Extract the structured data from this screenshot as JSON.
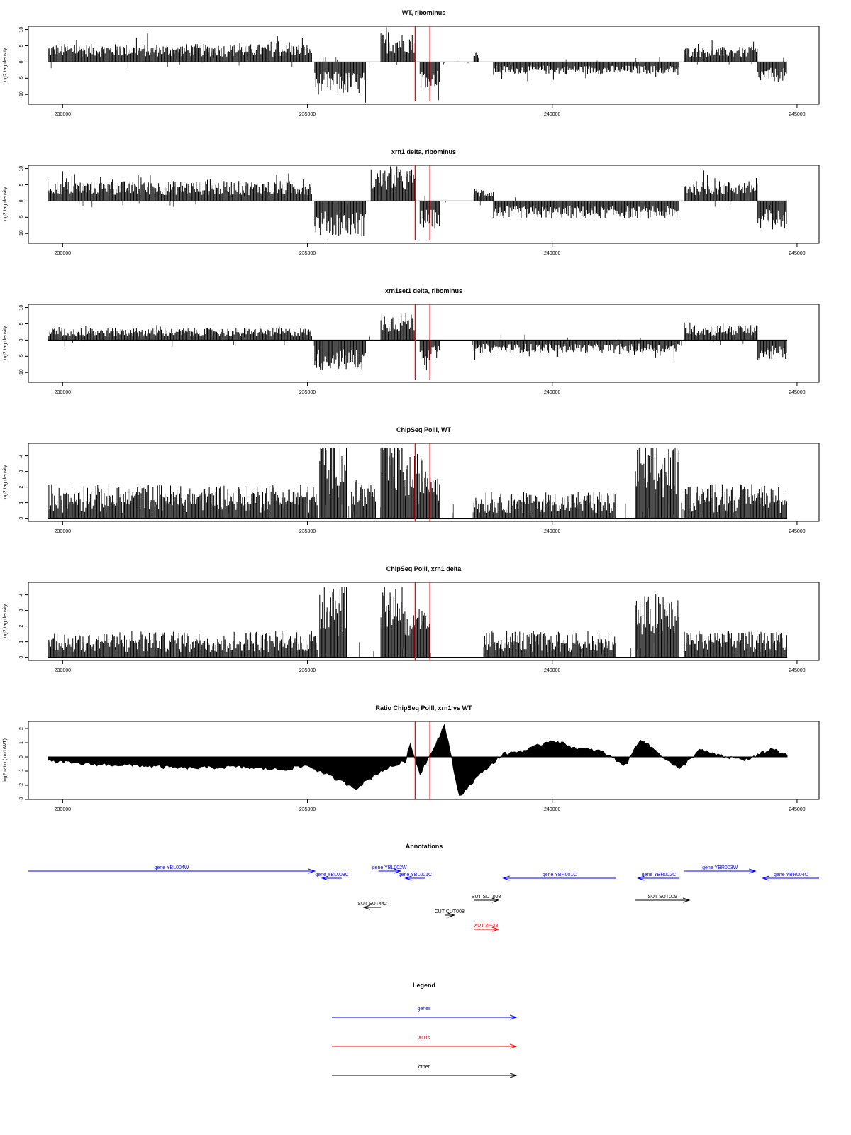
{
  "chart_data": [
    {
      "type": "bar",
      "title": "WT, ribominus",
      "xlabel": "",
      "ylabel": "log2 tag density",
      "xlim": [
        229300,
        245450
      ],
      "ylim": [
        -13,
        11
      ],
      "yticks": [
        "-10",
        "-5",
        "0",
        "5",
        "10"
      ],
      "xticks": [
        "230000",
        "235000",
        "240000",
        "245000"
      ],
      "regions": [
        {
          "start": 229700,
          "end": 235100,
          "mean": 3.6,
          "sign": 1
        },
        {
          "start": 235150,
          "end": 236200,
          "mean": -6.5,
          "sign": -1
        },
        {
          "start": 236500,
          "end": 237200,
          "mean": 5.8,
          "sign": 1
        },
        {
          "start": 237300,
          "end": 237700,
          "mean": -5.0,
          "sign": -1
        },
        {
          "start": 238400,
          "end": 238500,
          "mean": 2.0,
          "sign": 1
        },
        {
          "start": 238800,
          "end": 242600,
          "mean": -2.4,
          "sign": -1
        },
        {
          "start": 242700,
          "end": 244200,
          "mean": 3.0,
          "sign": 1
        },
        {
          "start": 244200,
          "end": 244800,
          "mean": -4.0,
          "sign": -1
        }
      ],
      "markers": [
        237200,
        237500
      ]
    },
    {
      "type": "bar",
      "title": "xrn1 delta, ribominus",
      "xlabel": "",
      "ylabel": "log2 tag density",
      "xlim": [
        229300,
        245450
      ],
      "ylim": [
        -13,
        11
      ],
      "yticks": [
        "-10",
        "-5",
        "0",
        "5",
        "10"
      ],
      "xticks": [
        "230000",
        "235000",
        "240000",
        "245000"
      ],
      "regions": [
        {
          "start": 229700,
          "end": 235100,
          "mean": 4.0,
          "sign": 1
        },
        {
          "start": 235150,
          "end": 236200,
          "mean": -7.0,
          "sign": -1
        },
        {
          "start": 236300,
          "end": 237200,
          "mean": 6.5,
          "sign": 1
        },
        {
          "start": 237300,
          "end": 237700,
          "mean": -5.5,
          "sign": -1
        },
        {
          "start": 238400,
          "end": 238800,
          "mean": 2.5,
          "sign": 1
        },
        {
          "start": 238800,
          "end": 242600,
          "mean": -3.5,
          "sign": -1
        },
        {
          "start": 242700,
          "end": 244200,
          "mean": 4.0,
          "sign": 1
        },
        {
          "start": 244200,
          "end": 244800,
          "mean": -5.5,
          "sign": -1
        }
      ],
      "markers": [
        237200,
        237500
      ]
    },
    {
      "type": "bar",
      "title": "xrn1set1 delta, ribominus",
      "xlabel": "",
      "ylabel": "log2 tag density",
      "xlim": [
        229300,
        245450
      ],
      "ylim": [
        -13,
        11
      ],
      "yticks": [
        "-10",
        "-5",
        "0",
        "5",
        "10"
      ],
      "xticks": [
        "230000",
        "235000",
        "240000",
        "245000"
      ],
      "regions": [
        {
          "start": 229700,
          "end": 235100,
          "mean": 2.4,
          "sign": 1
        },
        {
          "start": 235150,
          "end": 236200,
          "mean": -6.0,
          "sign": -1
        },
        {
          "start": 236500,
          "end": 237200,
          "mean": 5.5,
          "sign": 1
        },
        {
          "start": 237300,
          "end": 237700,
          "mean": -4.0,
          "sign": -1
        },
        {
          "start": 238400,
          "end": 242600,
          "mean": -2.5,
          "sign": -1
        },
        {
          "start": 242700,
          "end": 244200,
          "mean": 3.0,
          "sign": 1
        },
        {
          "start": 244200,
          "end": 244800,
          "mean": -4.0,
          "sign": -1
        }
      ],
      "markers": [
        237200,
        237500
      ]
    },
    {
      "type": "bar",
      "title": "ChipSeq PolII, WT",
      "xlabel": "",
      "ylabel": "log2 tag density",
      "xlim": [
        229300,
        245450
      ],
      "ylim": [
        -0.2,
        4.8
      ],
      "yticks": [
        "0",
        "1",
        "2",
        "3",
        "4"
      ],
      "xticks": [
        "230000",
        "235000",
        "240000",
        "245000"
      ],
      "regions": [
        {
          "start": 229700,
          "end": 235200,
          "mean": 1.3,
          "sign": 1
        },
        {
          "start": 235250,
          "end": 235800,
          "mean": 3.8,
          "sign": 1
        },
        {
          "start": 235900,
          "end": 236400,
          "mean": 1.6,
          "sign": 1
        },
        {
          "start": 236500,
          "end": 237000,
          "mean": 3.6,
          "sign": 1
        },
        {
          "start": 237000,
          "end": 237700,
          "mean": 2.6,
          "sign": 1
        },
        {
          "start": 238400,
          "end": 241300,
          "mean": 1.0,
          "sign": 1
        },
        {
          "start": 241700,
          "end": 242600,
          "mean": 3.0,
          "sign": 1
        },
        {
          "start": 242700,
          "end": 244800,
          "mean": 1.4,
          "sign": 1
        }
      ],
      "markers": [
        237200,
        237500
      ]
    },
    {
      "type": "bar",
      "title": "ChipSeq PolII, xrn1 delta",
      "xlabel": "",
      "ylabel": "log2 tag density",
      "xlim": [
        229300,
        245450
      ],
      "ylim": [
        -0.2,
        4.8
      ],
      "yticks": [
        "0",
        "1",
        "2",
        "3",
        "4"
      ],
      "xticks": [
        "230000",
        "235000",
        "240000",
        "245000"
      ],
      "regions": [
        {
          "start": 229700,
          "end": 235200,
          "mean": 1.0,
          "sign": 1
        },
        {
          "start": 235250,
          "end": 235800,
          "mean": 3.5,
          "sign": 1
        },
        {
          "start": 236500,
          "end": 237000,
          "mean": 3.4,
          "sign": 1
        },
        {
          "start": 237000,
          "end": 237500,
          "mean": 2.0,
          "sign": 1
        },
        {
          "start": 238600,
          "end": 241300,
          "mean": 1.0,
          "sign": 1
        },
        {
          "start": 241700,
          "end": 242600,
          "mean": 2.6,
          "sign": 1
        },
        {
          "start": 242700,
          "end": 244800,
          "mean": 1.1,
          "sign": 1
        }
      ],
      "markers": [
        237200,
        237500
      ]
    },
    {
      "type": "area",
      "title": "Ratio ChipSeq PolII, xrn1 vs WT",
      "xlabel": "",
      "ylabel": "log2 ratio (xrn1/WT)",
      "xlim": [
        229300,
        245450
      ],
      "ylim": [
        -3,
        2.5
      ],
      "yticks": [
        "-3",
        "-2",
        "-1",
        "0",
        "1",
        "2"
      ],
      "xticks": [
        "230000",
        "235000",
        "240000",
        "245000"
      ],
      "profile": [
        [
          229700,
          -0.3
        ],
        [
          230500,
          -0.5
        ],
        [
          231500,
          -0.6
        ],
        [
          232500,
          -0.8
        ],
        [
          233500,
          -0.7
        ],
        [
          234500,
          -0.9
        ],
        [
          235000,
          -0.6
        ],
        [
          235600,
          -1.6
        ],
        [
          236000,
          -2.2
        ],
        [
          236500,
          -1.0
        ],
        [
          237000,
          -0.3
        ],
        [
          237100,
          0.9
        ],
        [
          237300,
          -1.2
        ],
        [
          237700,
          1.5
        ],
        [
          237800,
          2.3
        ],
        [
          238100,
          -2.8
        ],
        [
          238500,
          -1.3
        ],
        [
          239000,
          0.2
        ],
        [
          239500,
          0.5
        ],
        [
          240000,
          1.2
        ],
        [
          240500,
          0.6
        ],
        [
          241000,
          0.4
        ],
        [
          241500,
          -0.6
        ],
        [
          241800,
          1.3
        ],
        [
          242200,
          0.2
        ],
        [
          242600,
          -0.9
        ],
        [
          243000,
          0.5
        ],
        [
          243500,
          0.0
        ],
        [
          244000,
          -0.2
        ],
        [
          244500,
          0.6
        ],
        [
          244800,
          0.1
        ]
      ],
      "markers": [
        237200,
        237500
      ]
    }
  ],
  "annotations": {
    "title": "Annotations",
    "items": [
      {
        "label": "gene YBL004W",
        "start": 229300,
        "end": 235150,
        "strand": "+",
        "kind": "genes",
        "row": 0
      },
      {
        "label": "gene YBL003C",
        "start": 235300,
        "end": 235700,
        "strand": "-",
        "kind": "genes",
        "row": 1
      },
      {
        "label": "gene YBL002W",
        "start": 236450,
        "end": 236900,
        "strand": "+",
        "kind": "genes",
        "row": 0
      },
      {
        "label": "gene YBL001C",
        "start": 237000,
        "end": 237400,
        "strand": "-",
        "kind": "genes",
        "row": 1
      },
      {
        "label": "gene YBR001C",
        "start": 239000,
        "end": 241300,
        "strand": "-",
        "kind": "genes",
        "row": 1
      },
      {
        "label": "gene YBR002C",
        "start": 241750,
        "end": 242600,
        "strand": "-",
        "kind": "genes",
        "row": 1
      },
      {
        "label": "gene YBR003W",
        "start": 242700,
        "end": 244150,
        "strand": "+",
        "kind": "genes",
        "row": 0
      },
      {
        "label": "gene YBR004C",
        "start": 244300,
        "end": 245450,
        "strand": "-",
        "kind": "genes",
        "row": 1
      },
      {
        "label": "SUT SUT008",
        "start": 238400,
        "end": 238900,
        "strand": "+",
        "kind": "other",
        "row": 2
      },
      {
        "label": "SUT SUT442",
        "start": 236150,
        "end": 236500,
        "strand": "-",
        "kind": "other",
        "row": 3
      },
      {
        "label": "SUT SUT009",
        "start": 241700,
        "end": 242800,
        "strand": "+",
        "kind": "other",
        "row": 2
      },
      {
        "label": "CUT CUT008",
        "start": 237800,
        "end": 238000,
        "strand": "+",
        "kind": "other",
        "row": 4
      },
      {
        "label": "XUT 2F-28",
        "start": 238400,
        "end": 238900,
        "strand": "+",
        "kind": "XUTs",
        "row": 5
      }
    ]
  },
  "legend": {
    "title": "Legend",
    "items": [
      {
        "label": "genes",
        "color": "#0000ff"
      },
      {
        "label": "XUTs",
        "color": "#ff0000"
      },
      {
        "label": "other",
        "color": "#000000"
      }
    ]
  },
  "colors": {
    "bars": "#000000",
    "marker": "#ff0000",
    "genes": "#0000ff",
    "XUTs": "#ff0000",
    "other": "#000000"
  }
}
